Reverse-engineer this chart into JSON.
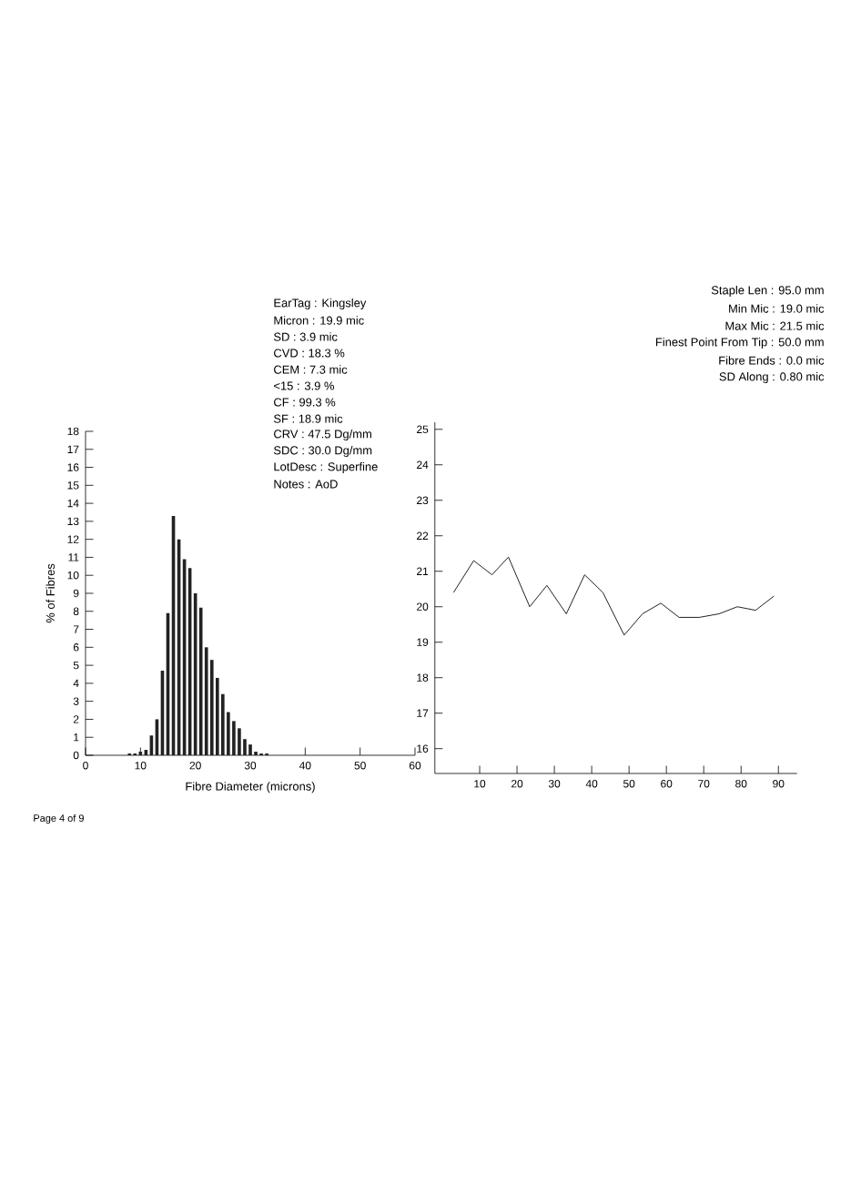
{
  "chart_data": [
    {
      "type": "histogram",
      "xlabel": "Fibre Diameter (microns)",
      "ylabel": "% of Fibres",
      "color": "#222222",
      "bins": [
        7.5,
        8.5,
        9.5,
        10.5,
        11.5,
        12.5,
        13.5,
        14.5,
        15.5,
        16.5,
        17.5,
        18.5,
        19.5,
        20.5,
        21.5,
        22.5,
        23.5,
        24.5,
        25.5,
        26.5,
        27.5,
        28.5,
        29.5,
        30.5,
        31.5,
        32.5,
        33.5
      ],
      "values": [
        0.1,
        0.1,
        0.2,
        0.3,
        1.1,
        2.0,
        4.7,
        7.9,
        13.3,
        12.0,
        10.9,
        10.4,
        9.0,
        8.2,
        6.0,
        5.3,
        4.3,
        3.4,
        2.4,
        1.9,
        1.5,
        0.9,
        0.6,
        0.2,
        0.1,
        0.1
      ],
      "xlim": [
        0,
        60
      ],
      "xticks": [
        0,
        10,
        20,
        30,
        40,
        50,
        60
      ],
      "ylim": [
        0,
        18
      ],
      "yticks": [
        0,
        1,
        2,
        3,
        4,
        5,
        6,
        7,
        8,
        9,
        10,
        11,
        12,
        13,
        14,
        15,
        16,
        17,
        18
      ],
      "annotations": [
        "EarTag : Kingsley",
        "Micron : 19.9 mic",
        "SD : 3.9 mic",
        "CVD : 18.3 %",
        "CEM : 7.3 mic",
        "<15 : 3.9 %",
        "CF : 99.3 %",
        "SF : 18.9 mic",
        "CRV : 47.5 Dg/mm",
        "SDC : 30.0 Dg/mm",
        "LotDesc : Superfine",
        "Notes : AoD",
        "Page 4 of 9"
      ]
    },
    {
      "type": "line",
      "color": "#222222",
      "x": [
        3.0,
        8.4,
        13.3,
        17.7,
        23.4,
        28.0,
        33.2,
        38.1,
        43.0,
        48.7,
        53.6,
        58.5,
        63.4,
        68.8,
        74.1,
        79.0,
        83.9,
        88.8
      ],
      "values": [
        20.4,
        21.3,
        20.9,
        21.4,
        20.0,
        20.6,
        19.8,
        20.9,
        20.4,
        19.2,
        19.8,
        20.1,
        19.7,
        19.7,
        19.8,
        20.0,
        19.9,
        20.3
      ],
      "xlim": [
        -2,
        95
      ],
      "xticks": [
        10,
        20,
        30,
        40,
        50,
        60,
        70,
        80,
        90
      ],
      "ylim": [
        15.3,
        25.2
      ],
      "yticks": [
        16,
        17,
        18,
        19,
        20,
        21,
        22,
        23,
        24,
        25
      ],
      "annotations": [
        "Staple Len : 95.0 mm",
        "Min Mic : 19.0 mic",
        "Max Mic : 21.5 mic",
        "Finest Point From Tip : 50.0 mm",
        "Fibre Ends : 0.0 mic",
        "SD Along : 0.80 mic"
      ]
    }
  ]
}
